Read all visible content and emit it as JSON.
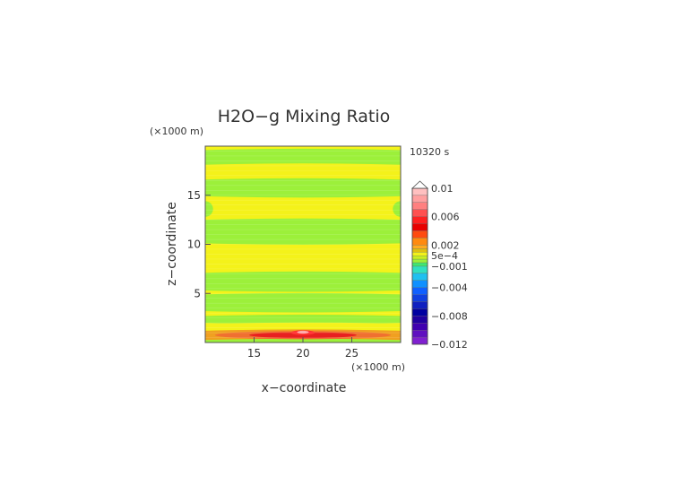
{
  "chart_data": {
    "type": "heatmap",
    "title": "H2O−g Mixing Ratio",
    "time_label": "10320 s",
    "xlabel": "x−coordinate",
    "ylabel": "z−coordinate",
    "x_unit": "(×1000 m)",
    "y_unit": "(×1000 m)",
    "xlim": [
      10,
      30
    ],
    "ylim": [
      0,
      20
    ],
    "x_ticks": [
      15,
      20,
      25
    ],
    "y_ticks": [
      5,
      10,
      15
    ],
    "grid": false,
    "background_level_color": "#f4f21a",
    "bands": [
      {
        "z": [
          19.6,
          20.0
        ],
        "color": "#f4f21a"
      },
      {
        "z": [
          18.1,
          19.6
        ],
        "color": "#9cf03a"
      },
      {
        "z": [
          16.8,
          18.1
        ],
        "color": "#f4f21a"
      },
      {
        "z": [
          14.9,
          16.6
        ],
        "color": "#9cf03a"
      },
      {
        "z": [
          10.1,
          12.5
        ],
        "color": "#9cf03a"
      },
      {
        "z": [
          5.3,
          7.1
        ],
        "color": "#9cf03a"
      },
      {
        "z": [
          3.2,
          4.9
        ],
        "color": "#9cf03a"
      },
      {
        "z": [
          2.0,
          2.7
        ],
        "color": "#9cf03a"
      },
      {
        "z": [
          1.4,
          1.9
        ],
        "color": "#f4f21a"
      },
      {
        "z": [
          0.25,
          1.2
        ],
        "color": "#f0a020"
      },
      {
        "z": [
          0.0,
          0.25
        ],
        "color": "#9cf03a"
      }
    ],
    "side_lobes": [
      {
        "x": 10.0,
        "z": 13.6,
        "rx": 0.8,
        "rz": 0.8,
        "color": "#9cf03a"
      },
      {
        "x": 30.0,
        "z": 13.6,
        "rx": 0.8,
        "rz": 0.8,
        "color": "#9cf03a"
      }
    ],
    "hot_spots": [
      {
        "x": 20.0,
        "z": 0.75,
        "rx": 9.0,
        "rz": 0.42,
        "color": "#f07030"
      },
      {
        "x": 20.0,
        "z": 0.75,
        "rx": 5.5,
        "rz": 0.3,
        "color": "#e82020"
      },
      {
        "x": 20.0,
        "z": 1.0,
        "rx": 1.2,
        "rz": 0.25,
        "color": "#ff3030"
      },
      {
        "x": 20.0,
        "z": 1.05,
        "rx": 0.6,
        "rz": 0.15,
        "color": "#ffaaaa"
      }
    ],
    "colorbar": {
      "labels": [
        "0.01",
        "0.006",
        "0.002",
        "5e−4",
        "−0.001",
        "−0.004",
        "−0.008",
        "−0.012"
      ],
      "label_values": [
        0.01,
        0.006,
        0.002,
        0.0005,
        -0.001,
        -0.004,
        -0.008,
        -0.012
      ],
      "range": [
        -0.012,
        0.01
      ],
      "levels": [
        {
          "lo": 0.009,
          "hi": 0.01,
          "color": "#ffc0c0"
        },
        {
          "lo": 0.008,
          "hi": 0.009,
          "color": "#ffa0a0"
        },
        {
          "lo": 0.007,
          "hi": 0.008,
          "color": "#ff8080"
        },
        {
          "lo": 0.006,
          "hi": 0.007,
          "color": "#ff5050"
        },
        {
          "lo": 0.005,
          "hi": 0.006,
          "color": "#ff2020"
        },
        {
          "lo": 0.004,
          "hi": 0.005,
          "color": "#e80000"
        },
        {
          "lo": 0.003,
          "hi": 0.004,
          "color": "#ff4a10"
        },
        {
          "lo": 0.002,
          "hi": 0.003,
          "color": "#ff8a10"
        },
        {
          "lo": 0.0015,
          "hi": 0.002,
          "color": "#ffaa20"
        },
        {
          "lo": 0.001,
          "hi": 0.0015,
          "color": "#e0c010"
        },
        {
          "lo": 0.0005,
          "hi": 0.001,
          "color": "#f4f21a"
        },
        {
          "lo": 0.0,
          "hi": 0.0005,
          "color": "#c8f020"
        },
        {
          "lo": -0.0005,
          "hi": 0.0,
          "color": "#9cf03a"
        },
        {
          "lo": -0.001,
          "hi": -0.0005,
          "color": "#40e870"
        },
        {
          "lo": -0.002,
          "hi": -0.001,
          "color": "#30e0c0"
        },
        {
          "lo": -0.003,
          "hi": -0.002,
          "color": "#20c0f0"
        },
        {
          "lo": -0.004,
          "hi": -0.003,
          "color": "#1090ff"
        },
        {
          "lo": -0.005,
          "hi": -0.004,
          "color": "#1060ff"
        },
        {
          "lo": -0.006,
          "hi": -0.005,
          "color": "#1040e0"
        },
        {
          "lo": -0.007,
          "hi": -0.006,
          "color": "#1020c0"
        },
        {
          "lo": -0.008,
          "hi": -0.007,
          "color": "#0000a0"
        },
        {
          "lo": -0.009,
          "hi": -0.008,
          "color": "#2000a0"
        },
        {
          "lo": -0.01,
          "hi": -0.009,
          "color": "#4000b0"
        },
        {
          "lo": -0.011,
          "hi": -0.01,
          "color": "#6010c0"
        },
        {
          "lo": -0.012,
          "hi": -0.011,
          "color": "#8020d0"
        }
      ],
      "max_arrow": true
    }
  }
}
